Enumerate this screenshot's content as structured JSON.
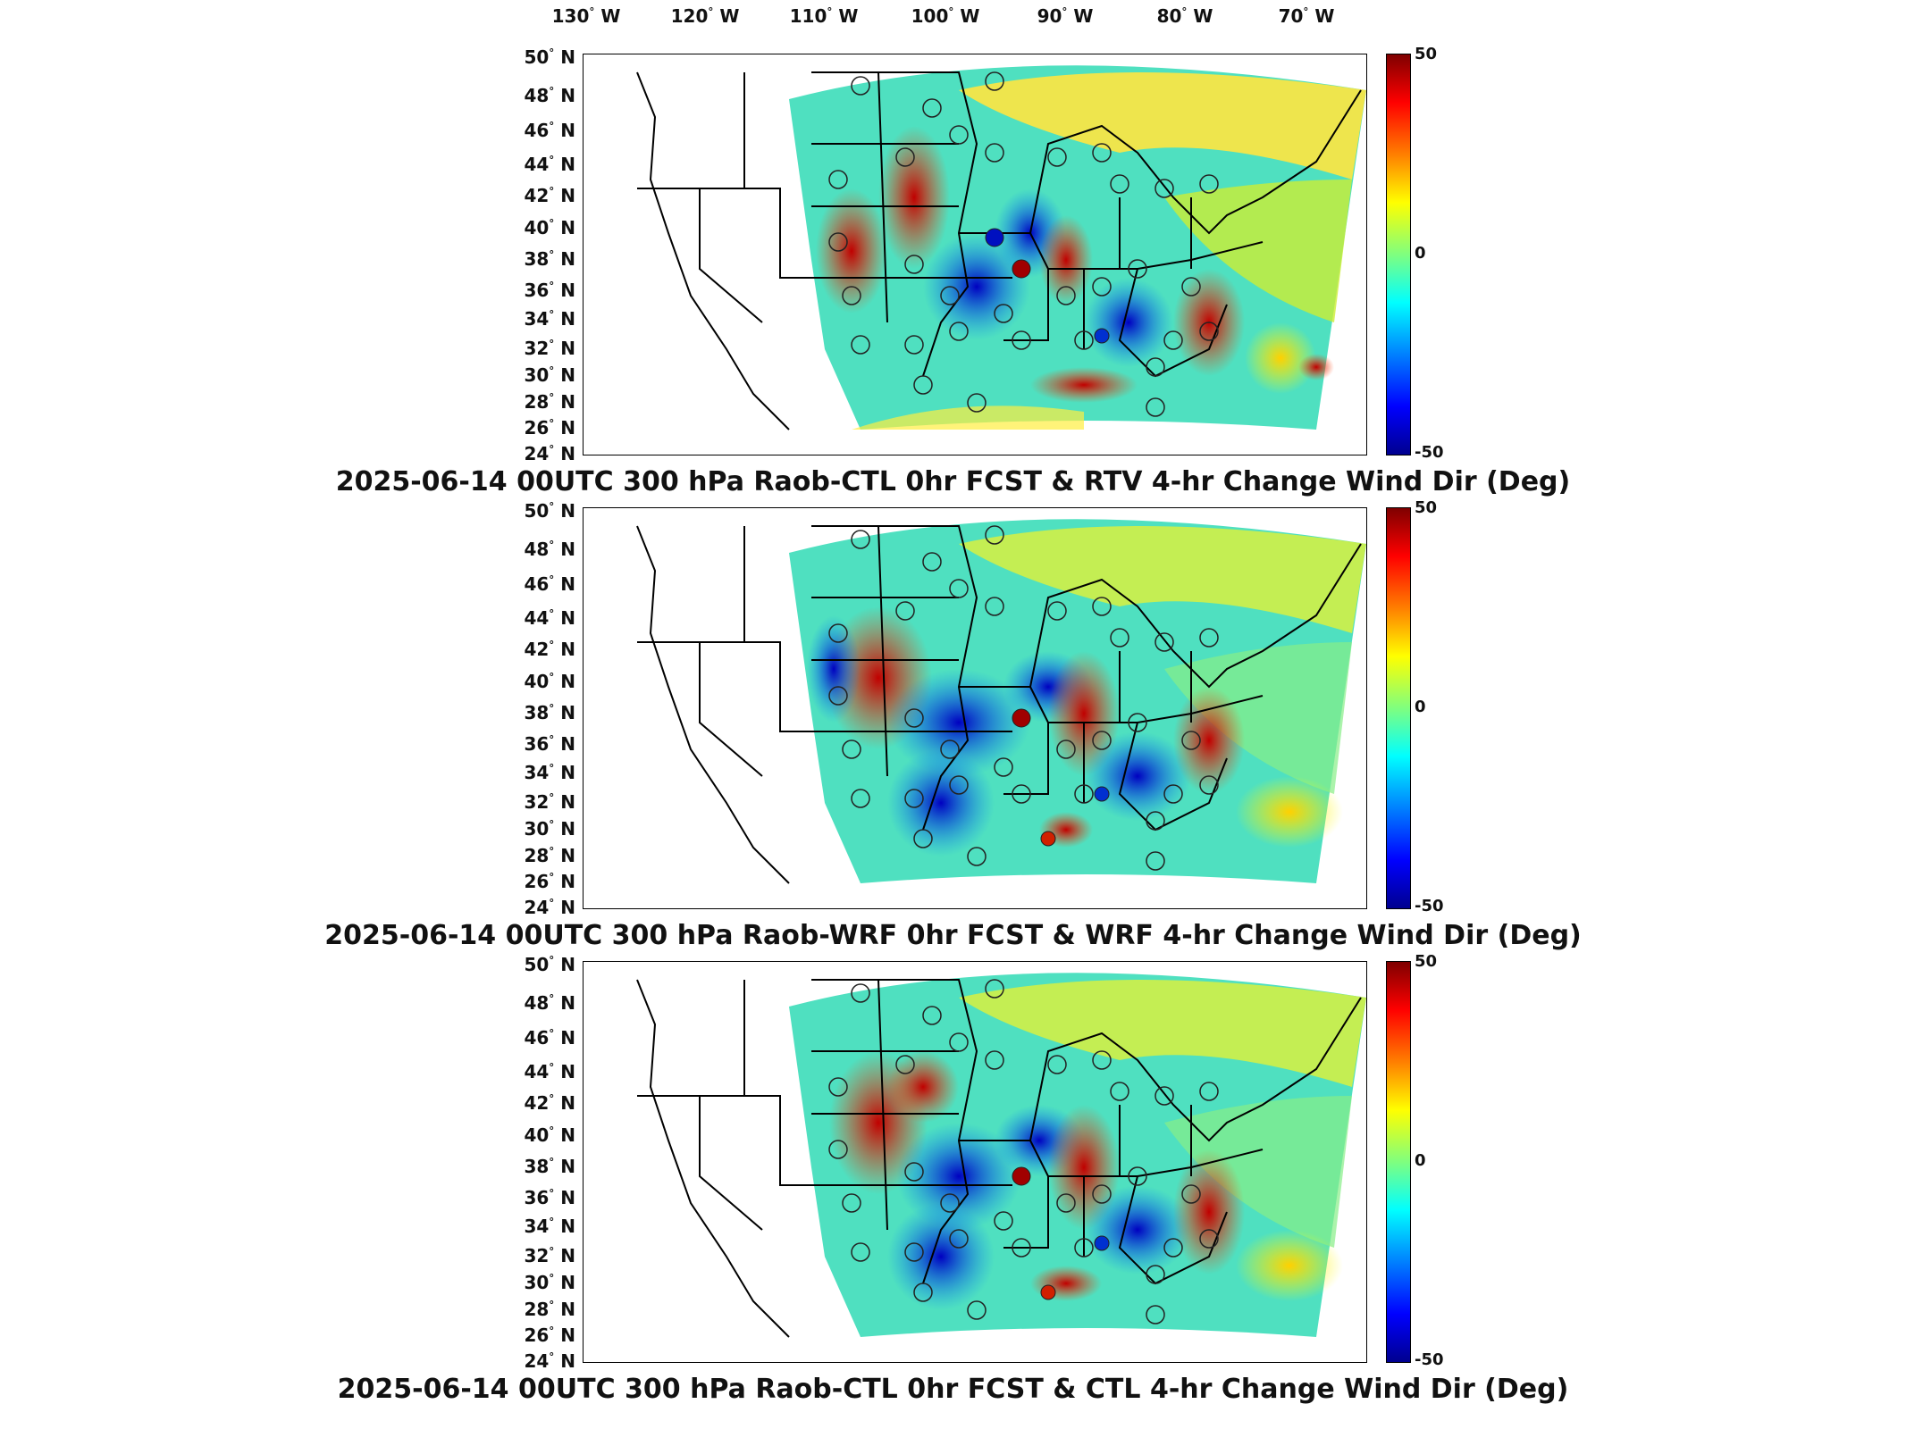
{
  "longitude_labels": [
    "130",
    "120",
    "110",
    "100",
    "90",
    "80",
    "70"
  ],
  "longitude_suffix": "W",
  "latitude_labels": [
    "50",
    "48",
    "46",
    "44",
    "42",
    "40",
    "38",
    "36",
    "34",
    "32",
    "30",
    "28",
    "26",
    "24"
  ],
  "latitude_suffix": "N",
  "degree_symbol": "°",
  "colorbar": {
    "max_label": "50",
    "mid_label": "0",
    "min_label": "-50",
    "colormap": "jet"
  },
  "panels": [
    {
      "title": "2025-06-14 00UTC 300 hPa Raob-CTL 0hr FCST & RTV 4-hr Change Wind Dir (Deg)"
    },
    {
      "title": "2025-06-14 00UTC 300 hPa Raob-WRF 0hr FCST & WRF 4-hr Change Wind Dir (Deg)"
    },
    {
      "title": "2025-06-14 00UTC 300 hPa Raob-CTL 0hr FCST & CTL 4-hr Change Wind Dir (Deg)"
    }
  ],
  "colors": {
    "dark_red": "#7f0000",
    "red": "#ff0000",
    "yellow": "#ffff00",
    "cyan": "#00ffff",
    "blue": "#0000ff",
    "dark_blue": "#00008f"
  }
}
